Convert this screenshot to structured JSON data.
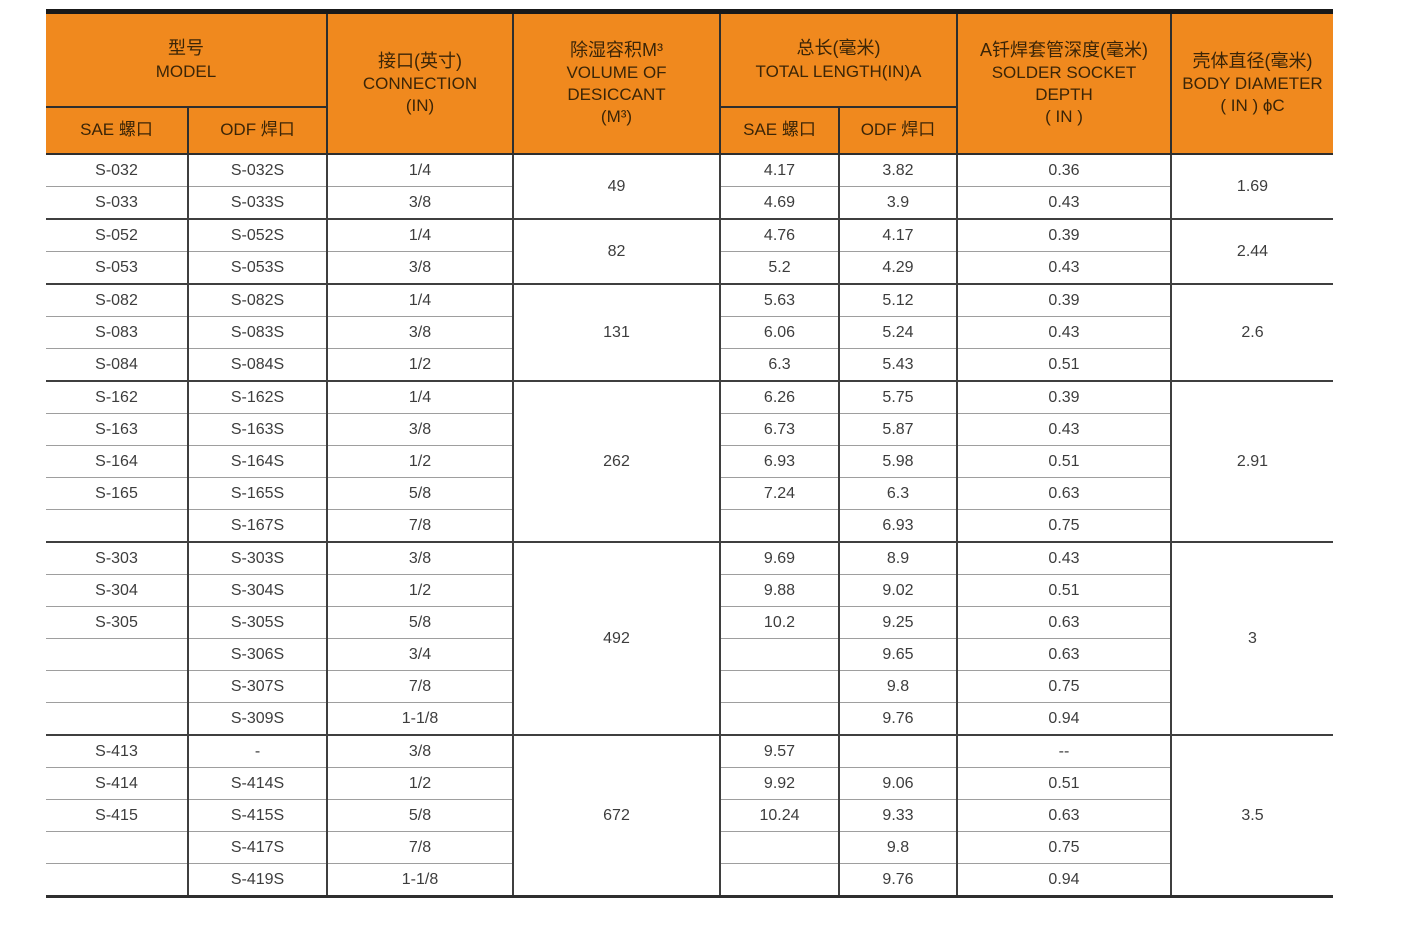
{
  "table": {
    "colors": {
      "header_background": "#F0891E",
      "header_text": "#3b2507",
      "body_text": "#3d3d3d",
      "group_border": "#3f3f3f",
      "row_border": "#9e9e9e"
    },
    "header": {
      "model": {
        "zh": "型号",
        "en": "MODEL"
      },
      "sub_sae": "SAE 螺口",
      "sub_odf": "ODF 焊口",
      "connection": {
        "zh": "接口(英寸)",
        "en": "CONNECTION",
        "en2": "(IN)"
      },
      "volume": {
        "zh": "除湿容积M³",
        "en": "VOLUME OF DESICCANT",
        "en2": "(M³)"
      },
      "total_length": {
        "zh": "总长(毫米)",
        "en": "TOTAL LENGTH(IN)A"
      },
      "solder": {
        "zh": "A钎焊套管深度(毫米)",
        "en": "SOLDER SOCKET",
        "en2": "DEPTH",
        "en3": "( IN )"
      },
      "diameter": {
        "zh": "壳体直径(毫米)",
        "en": "BODY DIAMETER",
        "en2": "( IN ) ϕC"
      }
    },
    "columns": [
      "model_sae",
      "model_odf",
      "connection",
      "volume",
      "length_sae",
      "length_odf",
      "solder_depth",
      "body_diameter"
    ],
    "groups": [
      {
        "volume": "49",
        "diameter": "1.69",
        "rows": [
          [
            "S-032",
            "S-032S",
            "1/4",
            "4.17",
            "3.82",
            "0.36"
          ],
          [
            "S-033",
            "S-033S",
            "3/8",
            "4.69",
            "3.9",
            "0.43"
          ]
        ]
      },
      {
        "volume": "82",
        "diameter": "2.44",
        "rows": [
          [
            "S-052",
            "S-052S",
            "1/4",
            "4.76",
            "4.17",
            "0.39"
          ],
          [
            "S-053",
            "S-053S",
            "3/8",
            "5.2",
            "4.29",
            "0.43"
          ]
        ]
      },
      {
        "volume": "131",
        "diameter": "2.6",
        "rows": [
          [
            "S-082",
            "S-082S",
            "1/4",
            "5.63",
            "5.12",
            "0.39"
          ],
          [
            "S-083",
            "S-083S",
            "3/8",
            "6.06",
            "5.24",
            "0.43"
          ],
          [
            "S-084",
            "S-084S",
            "1/2",
            "6.3",
            "5.43",
            "0.51"
          ]
        ]
      },
      {
        "volume": "262",
        "diameter": "2.91",
        "rows": [
          [
            "S-162",
            "S-162S",
            "1/4",
            "6.26",
            "5.75",
            "0.39"
          ],
          [
            "S-163",
            "S-163S",
            "3/8",
            "6.73",
            "5.87",
            "0.43"
          ],
          [
            "S-164",
            "S-164S",
            "1/2",
            "6.93",
            "5.98",
            "0.51"
          ],
          [
            "S-165",
            "S-165S",
            "5/8",
            "7.24",
            "6.3",
            "0.63"
          ],
          [
            "",
            "S-167S",
            "7/8",
            "",
            "6.93",
            "0.75"
          ]
        ]
      },
      {
        "volume": "492",
        "diameter": "3",
        "rows": [
          [
            "S-303",
            "S-303S",
            "3/8",
            "9.69",
            "8.9",
            "0.43"
          ],
          [
            "S-304",
            "S-304S",
            "1/2",
            "9.88",
            "9.02",
            "0.51"
          ],
          [
            "S-305",
            "S-305S",
            "5/8",
            "10.2",
            "9.25",
            "0.63"
          ],
          [
            "",
            "S-306S",
            "3/4",
            "",
            "9.65",
            "0.63"
          ],
          [
            "",
            "S-307S",
            "7/8",
            "",
            "9.8",
            "0.75"
          ],
          [
            "",
            "S-309S",
            "1-1/8",
            "",
            "9.76",
            "0.94"
          ]
        ]
      },
      {
        "volume": "672",
        "diameter": "3.5",
        "rows": [
          [
            "S-413",
            "-",
            "3/8",
            "9.57",
            "",
            "--"
          ],
          [
            "S-414",
            "S-414S",
            "1/2",
            "9.92",
            "9.06",
            "0.51"
          ],
          [
            "S-415",
            "S-415S",
            "5/8",
            "10.24",
            "9.33",
            "0.63"
          ],
          [
            "",
            "S-417S",
            "7/8",
            "",
            "9.8",
            "0.75"
          ],
          [
            "",
            "S-419S",
            "1-1/8",
            "",
            "9.76",
            "0.94"
          ]
        ]
      }
    ]
  }
}
